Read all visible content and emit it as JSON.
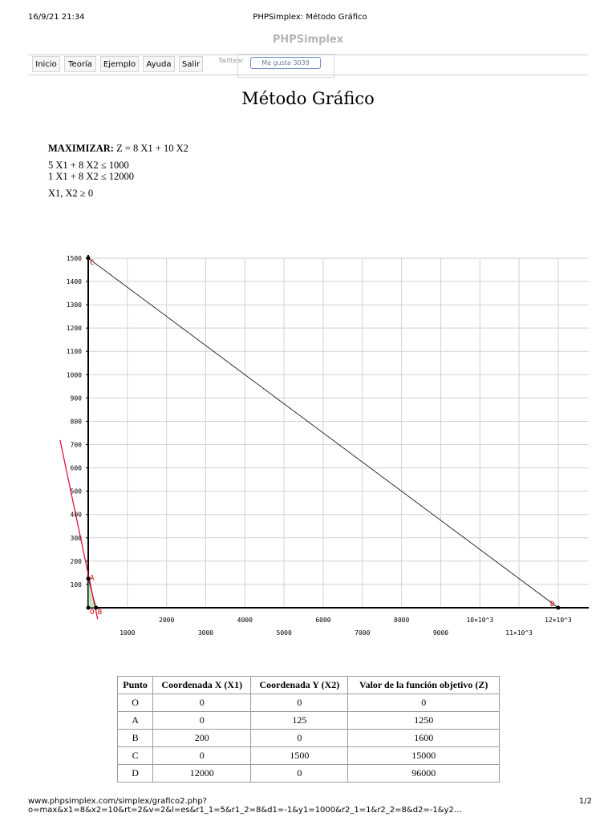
{
  "print_header": {
    "timestamp": "16/9/21 21:34",
    "title": "PHPSimplex: Método Gráfico"
  },
  "brand": "PHPSimplex",
  "nav": {
    "items": [
      "Inicio",
      "Teoría",
      "Ejemplo",
      "Ayuda",
      "Salir"
    ],
    "tweet_label": "Twittear",
    "like_label": "Me gusta 3039"
  },
  "page_title": "Método Gráfico",
  "problem": {
    "objective_label": "MAXIMIZAR:",
    "objective": "Z = 8 X1 + 10 X2",
    "constraints": [
      "5 X1 + 8 X2 ≤ 1000",
      "1 X1 + 8 X2 ≤ 12000"
    ],
    "nonneg": "X1, X2 ≥ 0"
  },
  "chart_data": {
    "type": "line",
    "xlim": [
      0,
      12500
    ],
    "ylim": [
      0,
      1500
    ],
    "x_ticks": [
      {
        "value": 1000,
        "label": "1000"
      },
      {
        "value": 2000,
        "label": "2000"
      },
      {
        "value": 3000,
        "label": "3000"
      },
      {
        "value": 4000,
        "label": "4000"
      },
      {
        "value": 5000,
        "label": "5000"
      },
      {
        "value": 6000,
        "label": "6000"
      },
      {
        "value": 7000,
        "label": "7000"
      },
      {
        "value": 8000,
        "label": "8000"
      },
      {
        "value": 9000,
        "label": "9000"
      },
      {
        "value": 10000,
        "label": "10×10^3"
      },
      {
        "value": 11000,
        "label": "11×10^3"
      },
      {
        "value": 12000,
        "label": "12×10^3"
      }
    ],
    "y_ticks": [
      100,
      200,
      300,
      400,
      500,
      600,
      700,
      800,
      900,
      1000,
      1100,
      1200,
      1300,
      1400,
      1500
    ],
    "grid": true,
    "series": [
      {
        "color": "#000000",
        "points": [
          [
            0,
            125
          ],
          [
            200,
            0
          ]
        ]
      },
      {
        "color": "#000000",
        "points": [
          [
            0,
            1500
          ],
          [
            12000,
            0
          ]
        ]
      }
    ],
    "objective_line": {
      "color": "#e0002a",
      "points": [
        [
          -720,
          720
        ],
        [
          240,
          -48
        ]
      ]
    },
    "labeled_points": [
      {
        "name": "O",
        "x": 0,
        "y": 0
      },
      {
        "name": "A",
        "x": 0,
        "y": 125
      },
      {
        "name": "B",
        "x": 200,
        "y": 0
      },
      {
        "name": "C",
        "x": 0,
        "y": 1500
      },
      {
        "name": "D",
        "x": 12000,
        "y": 0
      }
    ],
    "label_color": "#d80000"
  },
  "table": {
    "headers": [
      "Punto",
      "Coordenada X (X1)",
      "Coordenada Y (X2)",
      "Valor de la función objetivo (Z)"
    ],
    "rows": [
      [
        "O",
        "0",
        "0",
        "0"
      ],
      [
        "A",
        "0",
        "125",
        "1250"
      ],
      [
        "B",
        "200",
        "0",
        "1600"
      ],
      [
        "C",
        "0",
        "1500",
        "15000"
      ],
      [
        "D",
        "12000",
        "0",
        "96000"
      ]
    ]
  },
  "footer": {
    "url": "www.phpsimplex.com/simplex/grafico2.php?o=max&x1=8&x2=10&rt=2&v=2&l=es&r1_1=5&r1_2=8&d1=-1&y1=1000&r2_1=1&r2_2=8&d2=-1&y2…",
    "page": "1/2"
  }
}
